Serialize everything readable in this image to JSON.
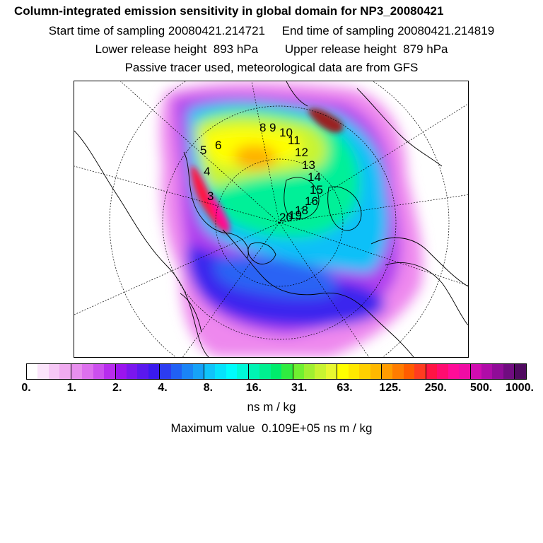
{
  "header": {
    "title": "Column-integrated emission sensitivity in global domain for NP3_20080421",
    "line1": "Start time of sampling 20080421.214721     End time of sampling 20080421.214819",
    "line2": "Lower release height  893 hPa        Upper release height  879 hPa",
    "line3": "Passive tracer used, meteorological data are from GFS"
  },
  "map": {
    "track_labels": [
      "3",
      "4",
      "5",
      "6",
      "8",
      "9",
      "10",
      "11",
      "12",
      "13",
      "14",
      "15",
      "16",
      "18",
      "19",
      "20"
    ]
  },
  "legend": {
    "ticks": [
      "0.",
      "1.",
      "2.",
      "4.",
      "8.",
      "16.",
      "31.",
      "63.",
      "125.",
      "250.",
      "500.",
      "1000."
    ],
    "colors": [
      "#ffffff",
      "#fbe4fb",
      "#f6c8f6",
      "#f0abf0",
      "#e88fee",
      "#dd70ee",
      "#cc4fee",
      "#b82cee",
      "#9a14ee",
      "#7a16ee",
      "#5a18ee",
      "#3a1aee",
      "#2c3cf0",
      "#2060f4",
      "#1a84f6",
      "#16a2f8",
      "#10c4fa",
      "#06e2fc",
      "#00fcfc",
      "#00f8d8",
      "#00f4b4",
      "#00f090",
      "#00ec6c",
      "#30ec40",
      "#70f030",
      "#a0f030",
      "#c8f430",
      "#e8f830",
      "#ffff00",
      "#ffe800",
      "#ffd000",
      "#ffb800",
      "#ff9c00",
      "#ff7c00",
      "#ff5c00",
      "#ff3c20",
      "#ff1444",
      "#ff0c70",
      "#ff0c98",
      "#f00ca4",
      "#d00cb0",
      "#b00ca8",
      "#900c98",
      "#700c80",
      "#500a60"
    ],
    "units": "ns m / kg",
    "max_value": "Maximum value  0.109E+05 ns m / kg"
  }
}
